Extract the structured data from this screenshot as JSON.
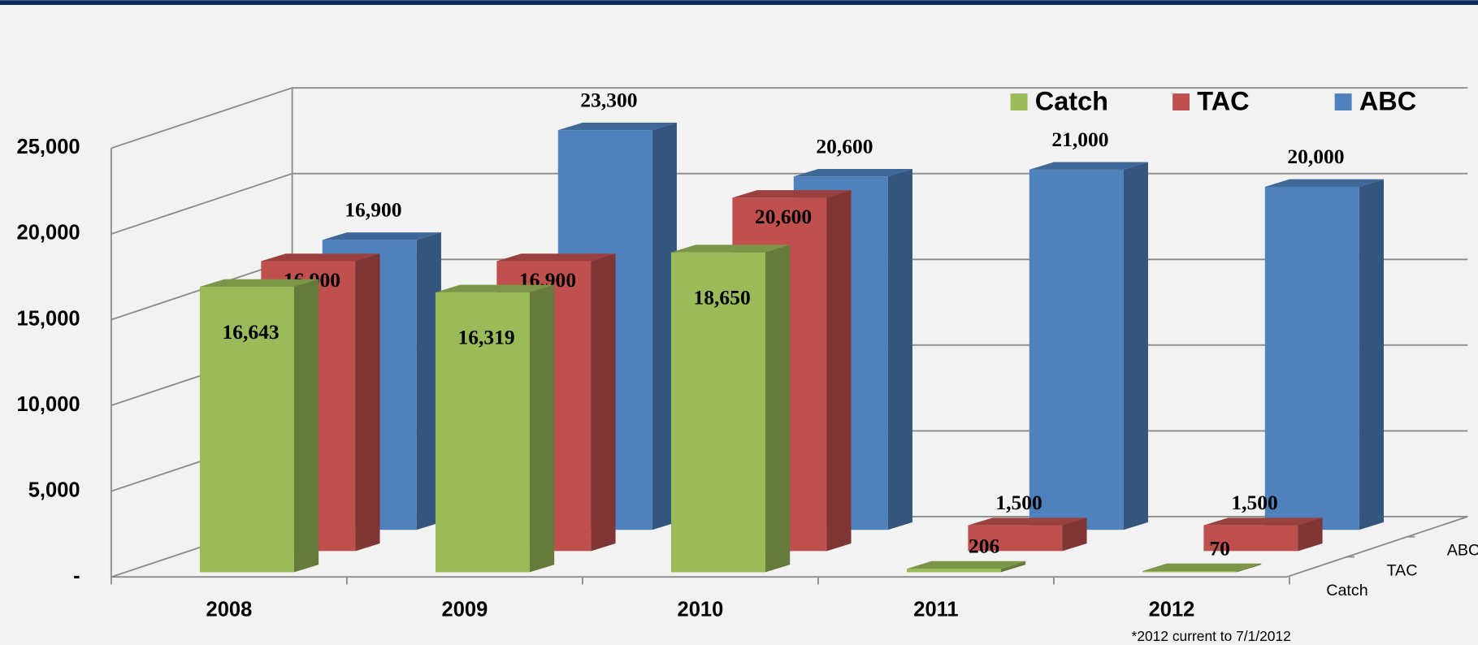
{
  "chart_data": {
    "type": "bar3d",
    "categories": [
      "2008",
      "2009",
      "2010",
      "2011",
      "2012"
    ],
    "series": [
      {
        "name": "Catch",
        "color": "#9bbb59",
        "values": [
          16643,
          16319,
          18650,
          206,
          70
        ],
        "value_labels": [
          "16,643",
          "16,319",
          "18,650",
          "206",
          "70"
        ]
      },
      {
        "name": "TAC",
        "color": "#c0504d",
        "values": [
          16900,
          16900,
          20600,
          1500,
          1500
        ],
        "value_labels": [
          "16,900",
          "16,900",
          "20,600",
          "1,500",
          "1,500"
        ]
      },
      {
        "name": "ABC",
        "color": "#4f81bd",
        "values": [
          16900,
          23300,
          20600,
          21000,
          20000
        ],
        "value_labels": [
          "16,900",
          "23,300",
          "20,600",
          "21,000",
          "20,000"
        ]
      }
    ],
    "ylim": [
      0,
      25000
    ],
    "yticks": [
      {
        "value": 0,
        "label": "-"
      },
      {
        "value": 5000,
        "label": "5,000"
      },
      {
        "value": 10000,
        "label": "10,000"
      },
      {
        "value": 15000,
        "label": "15,000"
      },
      {
        "value": 20000,
        "label": "20,000"
      },
      {
        "value": 25000,
        "label": "25,000"
      }
    ],
    "grid": true,
    "legend": "top-right",
    "footnote": "*2012 current to 7/1/2012"
  }
}
